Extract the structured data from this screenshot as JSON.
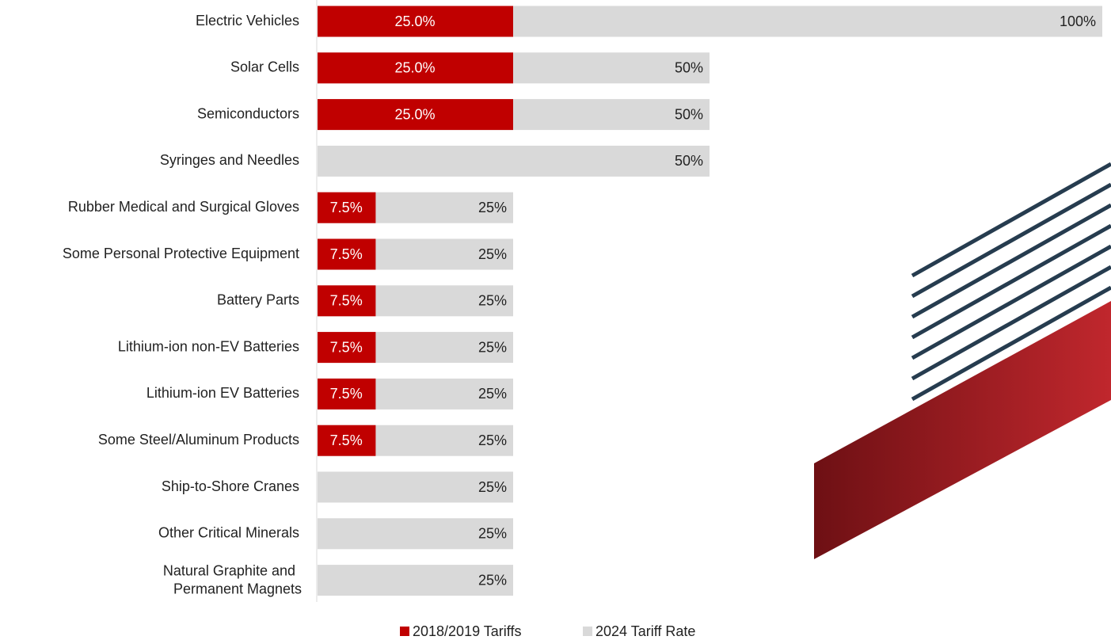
{
  "chart_data": {
    "type": "bar",
    "orientation": "horizontal",
    "overlap": true,
    "categories": [
      "Electric Vehicles",
      "Solar Cells",
      "Semiconductors",
      "Syringes and Needles",
      "Rubber Medical and Surgical Gloves",
      "Some Personal Protective Equipment",
      "Battery Parts",
      "Lithium-ion non-EV Batteries",
      "Lithium-ion EV Batteries",
      "Some Steel/Aluminum Products",
      "Ship-to-Shore Cranes",
      "Other Critical Minerals",
      "Natural Graphite and Permanent Magnets"
    ],
    "series": [
      {
        "name": "2024 Tariff Rate",
        "color": "#d9d9d9",
        "values": [
          100,
          50,
          50,
          50,
          25,
          25,
          25,
          25,
          25,
          25,
          25,
          25,
          25
        ],
        "value_labels": [
          "100%",
          "50%",
          "50%",
          "50%",
          "25%",
          "25%",
          "25%",
          "25%",
          "25%",
          "25%",
          "25%",
          "25%",
          "25%"
        ]
      },
      {
        "name": "2018/2019 Tariffs",
        "color": "#c00000",
        "values": [
          25,
          25,
          25,
          null,
          7.5,
          7.5,
          7.5,
          7.5,
          7.5,
          7.5,
          null,
          null,
          null
        ],
        "value_labels": [
          "25.0%",
          "25.0%",
          "25.0%",
          null,
          "7.5%",
          "7.5%",
          "7.5%",
          "7.5%",
          "7.5%",
          "7.5%",
          null,
          null,
          null
        ]
      }
    ],
    "xlim": [
      0,
      100
    ],
    "legend": "bottom"
  }
}
